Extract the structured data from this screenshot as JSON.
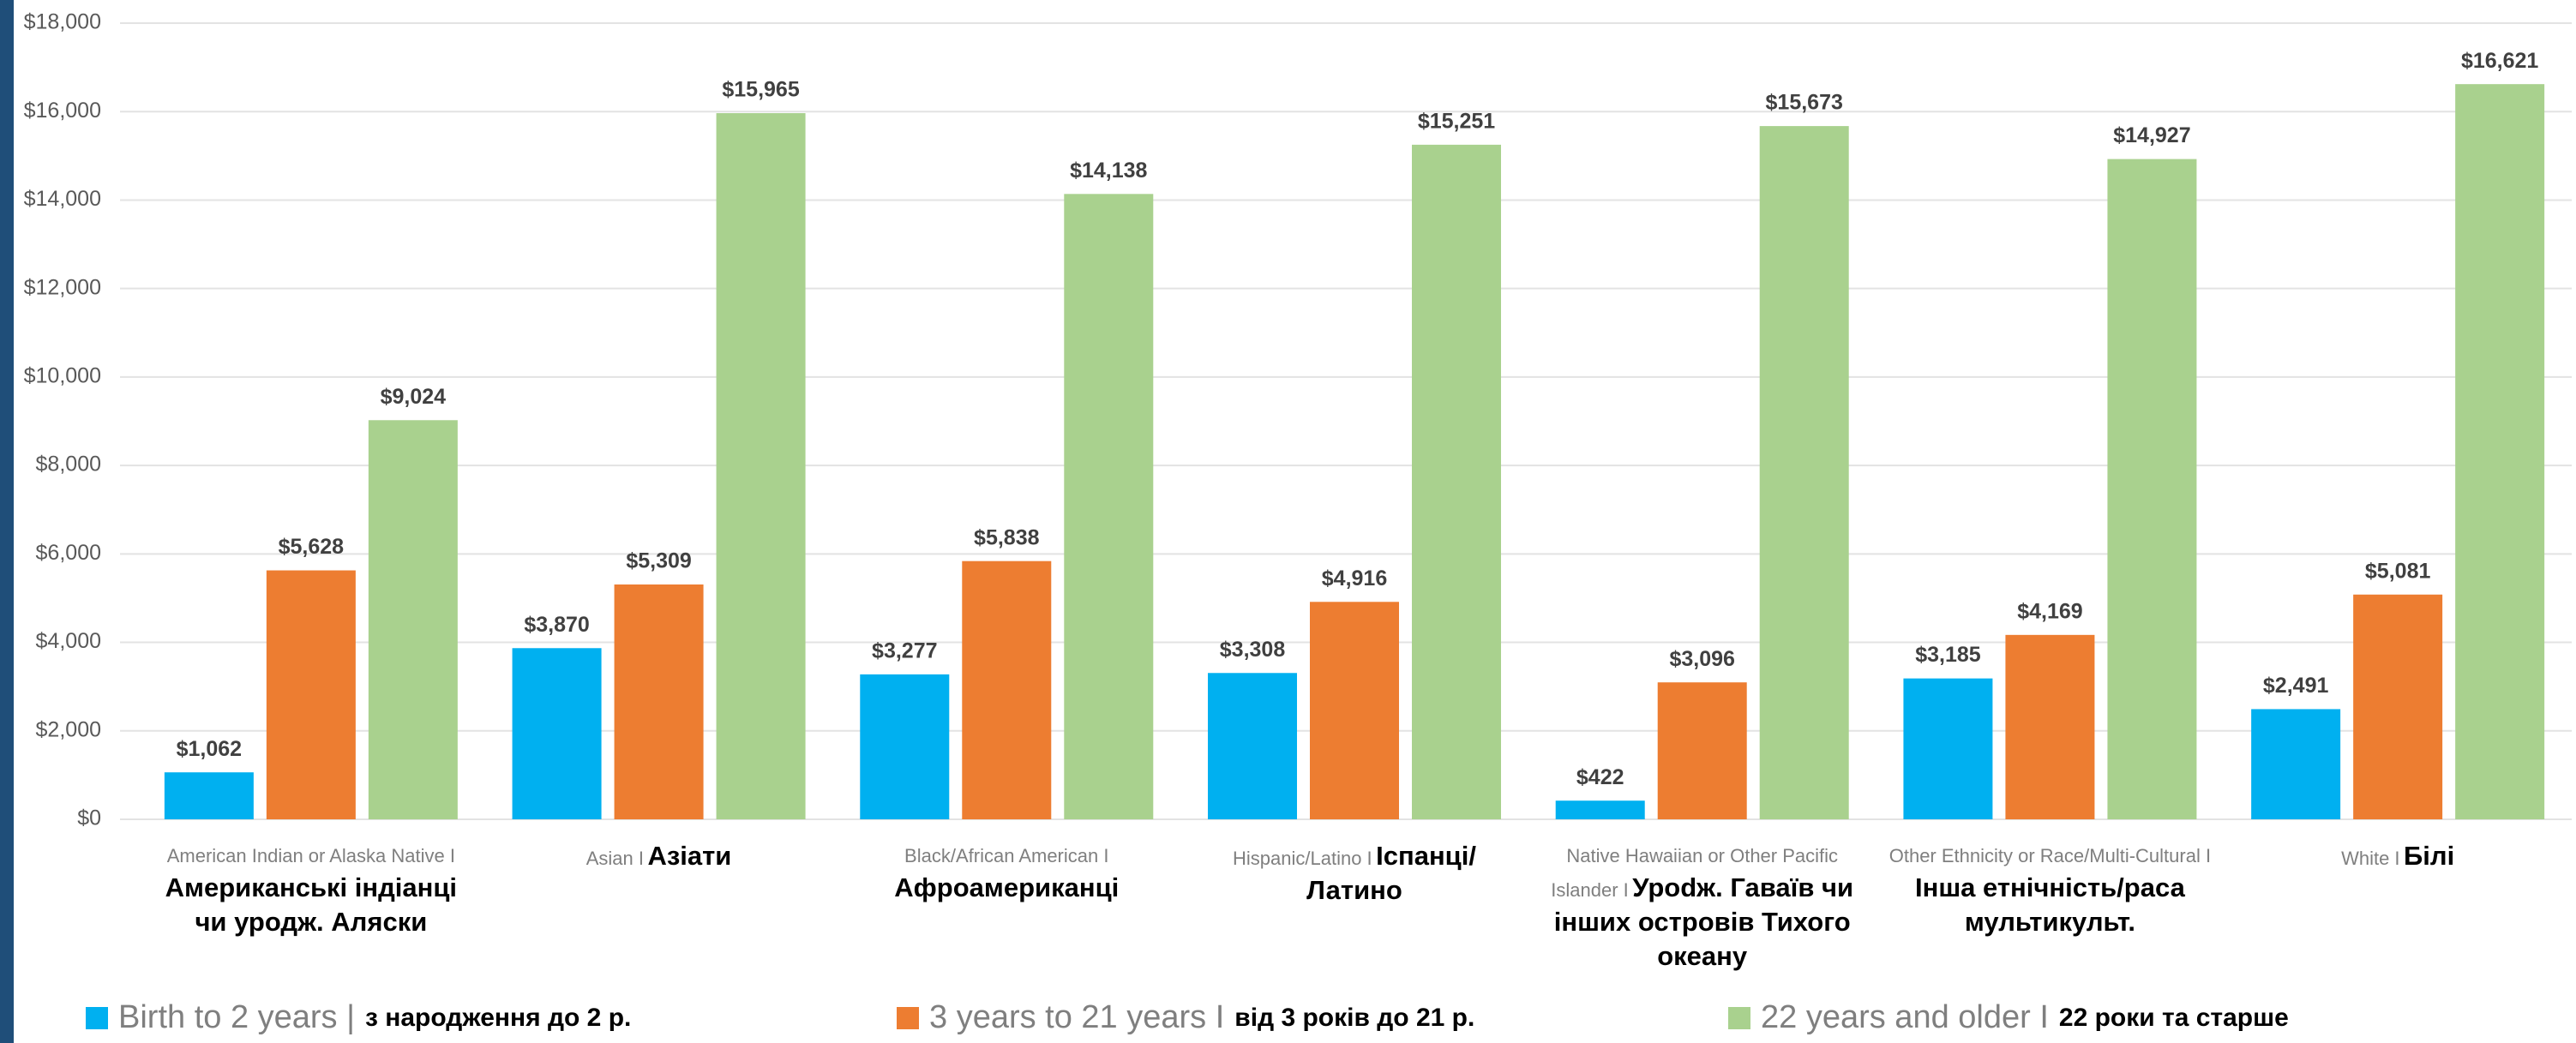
{
  "chart_data": {
    "type": "bar",
    "categories": [
      "American Indian or Alaska Native I",
      "Asian I",
      "Black/African American I",
      "Hispanic/Latino I",
      "Native Hawaiian or Other Pacific Islander I",
      "Other Ethnicity or Race/Multi-Cultural I",
      "White I"
    ],
    "categories_uk": [
      "Американські індіанці чи уродж. Аляски",
      "Азіати",
      "Афроамериканці",
      "Іспанці/Латино",
      "Урodж. Гаваїв чи інших островів Тихого океану",
      "Інша етнічність/раса мультикульт.",
      "Білі"
    ],
    "series": [
      {
        "name": "Birth to 2 years |",
        "name_uk": "з народження до 2 р.",
        "color": "#00b0f0",
        "values": [
          1062,
          3870,
          3277,
          3308,
          422,
          3185,
          2491
        ],
        "value_labels": [
          "$1,062",
          "$3,870",
          "$3,277",
          "$3,308",
          "$422",
          "$3,185",
          "$2,491"
        ]
      },
      {
        "name": "3 years to 21 years I",
        "name_uk": "від 3 років до 21 р.",
        "color": "#ed7d31",
        "values": [
          5628,
          5309,
          5838,
          4916,
          3096,
          4169,
          5081
        ],
        "value_labels": [
          "$5,628",
          "$5,309",
          "$5,838",
          "$4,916",
          "$3,096",
          "$4,169",
          "$5,081"
        ]
      },
      {
        "name": "22 years and older I",
        "name_uk": "22 роки та старше",
        "color": "#a9d18e",
        "values": [
          9024,
          15965,
          14138,
          15251,
          15673,
          14927,
          16621
        ],
        "value_labels": [
          "$9,024",
          "$15,965",
          "$14,138",
          "$15,251",
          "$15,673",
          "$14,927",
          "$16,621"
        ]
      }
    ],
    "ylim": [
      0,
      18000
    ],
    "yticks": [
      {
        "value": 0,
        "label": "$0"
      },
      {
        "value": 2000,
        "label": "$2,000"
      },
      {
        "value": 4000,
        "label": "$4,000"
      },
      {
        "value": 6000,
        "label": "$6,000"
      },
      {
        "value": 8000,
        "label": "$8,000"
      },
      {
        "value": 10000,
        "label": "$10,000"
      },
      {
        "value": 12000,
        "label": "$12,000"
      },
      {
        "value": 14000,
        "label": "$14,000"
      },
      {
        "value": 16000,
        "label": "$16,000"
      },
      {
        "value": 18000,
        "label": "$18,000"
      }
    ],
    "grid": true,
    "legend": "bottom"
  }
}
